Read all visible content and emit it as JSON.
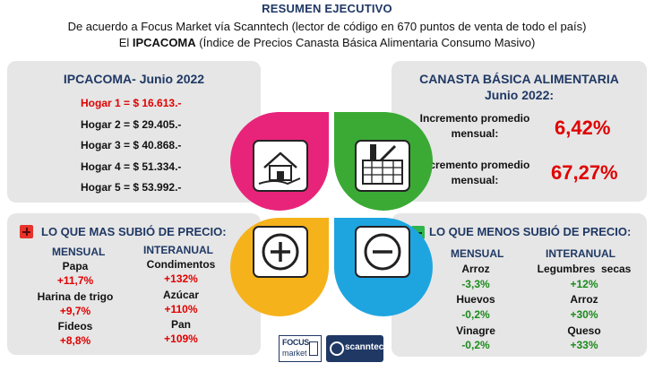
{
  "header": {
    "title": "RESUMEN EJECUTIVO",
    "line1": "De acuerdo a Focus Market vía Scanntech (lector de código en 670 puntos de venta de todo el país)",
    "line2_prefix": "El",
    "line2_bold": "IPCACOMA",
    "line2_rest": "(Índice de Precios Canasta Básica Alimentaria Consumo Masivo)"
  },
  "ipcacoma": {
    "title": "IPCACOMA- Junio 2022",
    "hogares": [
      "Hogar 1 = $ 16.613.-",
      "Hogar 2 = $ 29.405.-",
      "Hogar 3 = $ 40.868.-",
      "Hogar 4 = $ 51.334.-",
      "Hogar 5 = $ 53.992.-"
    ],
    "highlight_color": "#e00000"
  },
  "canasta": {
    "title_line1": "CANASTA BÁSICA ALIMENTARIA",
    "title_line2": "Junio 2022:",
    "rows": [
      {
        "label_l1": "Incremento promedio",
        "label_l2": "mensual:",
        "value": "6,42%"
      },
      {
        "label_l1": "Incremento promedio",
        "label_l2": "mensual:",
        "value": "67,27%"
      }
    ]
  },
  "mas_subio": {
    "title": "LO QUE MAS SUBIÓ DE PRECIO:",
    "icon": "red-plus-square-icon",
    "mensual_header": "MENSUAL",
    "interanual_header": "INTERANUAL",
    "mensual": [
      {
        "item": "Papa",
        "pct": "+11,7%"
      },
      {
        "item": "Harina de trigo",
        "pct": "+9,7%"
      },
      {
        "item": "Fideos",
        "pct": "+8,8%"
      }
    ],
    "interanual": [
      {
        "item": "Condimentos",
        "pct": "+132%"
      },
      {
        "item": "Azúcar",
        "pct": "+110%"
      },
      {
        "item": "Pan",
        "pct": "+109%"
      }
    ]
  },
  "menos_subio": {
    "title": "LO QUE MENOS SUBIÓ DE PRECIO:",
    "icon": "green-minus-square-icon",
    "mensual_header": "MENSUAL",
    "interanual_header": "INTERANUAL",
    "mensual": [
      {
        "item": "Arroz",
        "pct": "-3,3%"
      },
      {
        "item": "Huevos",
        "pct": "-0,2%"
      },
      {
        "item": "Vinagre",
        "pct": "-0,2%"
      }
    ],
    "interanual": [
      {
        "item": "Legumbres  secas",
        "pct": "+12%"
      },
      {
        "item": "Arroz",
        "pct": "+30%"
      },
      {
        "item": "Queso",
        "pct": "+33%"
      }
    ]
  },
  "center_graphic": {
    "icons": [
      "house-in-hand-icon",
      "grocery-basket-icon",
      "plus-circle-icon",
      "minus-circle-icon"
    ],
    "colors": {
      "pink": "#e8247a",
      "green": "#3aaa35",
      "yellow": "#f5b21b",
      "blue": "#1ea5e0"
    }
  },
  "logos": {
    "focus_line1": "FOCUS",
    "focus_line2": "market",
    "scanntech": "scanntech"
  },
  "colors": {
    "navy": "#1f3864",
    "red": "#e00000",
    "green": "#1b8a1b"
  }
}
